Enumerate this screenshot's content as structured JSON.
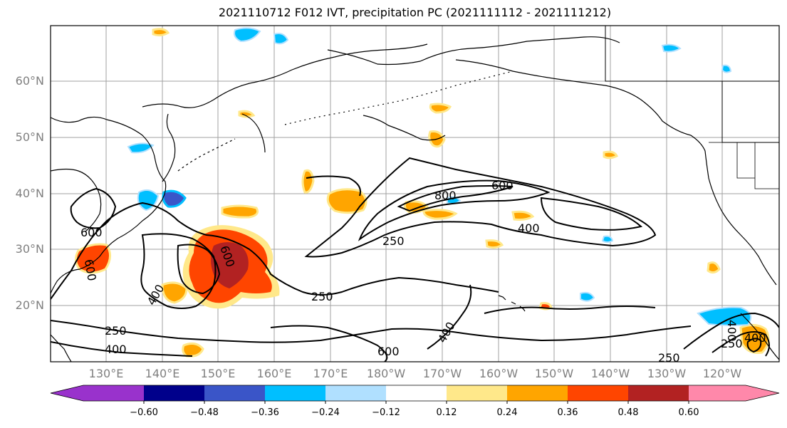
{
  "title": "2021110712 F012 IVT, precipitation PC (2021111112 - 2021111212)",
  "lat_labels": [
    "60°N",
    "50°N",
    "40°N",
    "30°N",
    "20°N"
  ],
  "lon_labels": [
    "130°E",
    "140°E",
    "150°E",
    "160°E",
    "170°E",
    "180°W",
    "170°W",
    "160°W",
    "150°W",
    "140°W",
    "130°W",
    "120°W"
  ],
  "colorbar": {
    "colors": [
      "#9932cc",
      "#00008b",
      "#3a55c8",
      "#00bfff",
      "#b0e0ff",
      "#ffffff",
      "#ffe88a",
      "#ffa500",
      "#ff4500",
      "#b22222",
      "#ff88aa"
    ],
    "ticks": [
      "−0.60",
      "−0.48",
      "−0.36",
      "−0.24",
      "−0.12",
      "0.12",
      "0.24",
      "0.36",
      "0.48",
      "0.60"
    ]
  },
  "contour_labels": [
    "600",
    "800",
    "400",
    "250",
    "600",
    "400",
    "250",
    "600",
    "250",
    "400",
    "400",
    "600",
    "250",
    "250",
    "400",
    "600",
    "400"
  ]
}
